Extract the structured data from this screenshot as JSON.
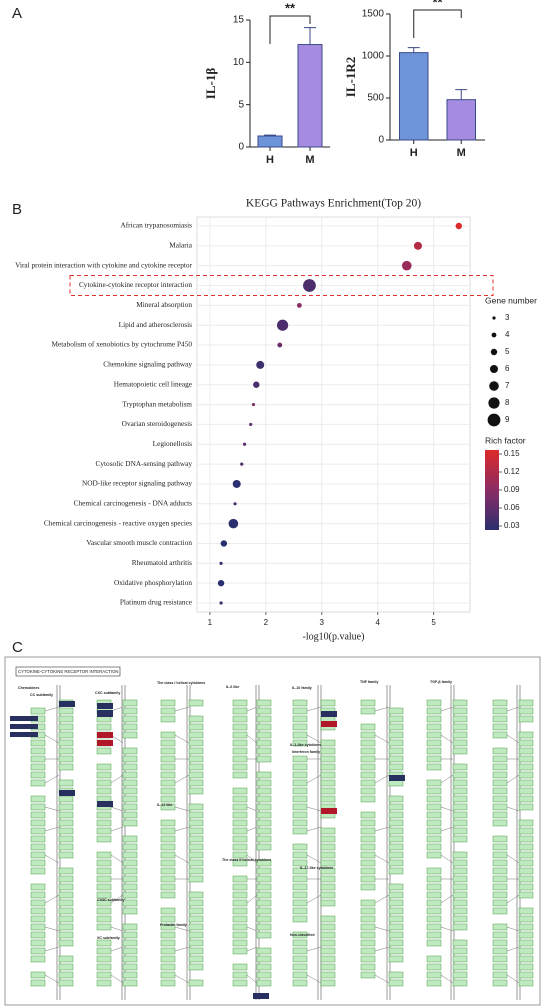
{
  "panel_labels": [
    "A",
    "B",
    "C"
  ],
  "chart_data": [
    {
      "type": "bar",
      "ylabel": "IL-1β",
      "categories": [
        "H",
        "M"
      ],
      "values": [
        1.3,
        12.1
      ],
      "errors": [
        0.1,
        2.0
      ],
      "colors": [
        "#6d93d8",
        "#a58ce0"
      ],
      "ylim": [
        0,
        15
      ],
      "yticks": [
        0,
        5,
        10,
        15
      ],
      "annotation": "**"
    },
    {
      "type": "bar",
      "ylabel": "IL-1R2",
      "categories": [
        "H",
        "M"
      ],
      "values": [
        1040,
        480
      ],
      "errors": [
        60,
        120
      ],
      "colors": [
        "#6d93d8",
        "#a58ce0"
      ],
      "ylim": [
        0,
        1500
      ],
      "yticks": [
        0,
        500,
        1000,
        1500
      ],
      "annotation": "**"
    },
    {
      "type": "dot",
      "title": "KEGG Pathways Enrichment(Top 20)",
      "xlabel": "-log10(p.value)",
      "categories": [
        "African trypanosomiasis",
        "Malaria",
        "Viral protein interaction with cytokine and cytokine receptor",
        "Cytokine-cytokine receptor interaction",
        "Mineral absorption",
        "Lipid and atherosclerosis",
        "Metabolism of xenobiotics by cytochrome P450",
        "Chemokine signaling pathway",
        "Hematopoietic cell lineage",
        "Tryptophan metabolism",
        "Ovarian steroidogenesis",
        "Legionellosis",
        "Cytosolic DNA-sensing pathway",
        "NOD-like receptor signaling pathway",
        "Chemical carcinogenesis - DNA adducts",
        "Chemical carcinogenesis - reactive oxygen species",
        "Vascular smooth muscle contraction",
        "Rheumatoid arthritis",
        "Oxidative phosphorylation",
        "Platinum drug resistance"
      ],
      "values": [
        5.45,
        4.72,
        4.52,
        2.78,
        2.6,
        2.3,
        2.25,
        1.9,
        1.83,
        1.78,
        1.73,
        1.62,
        1.57,
        1.48,
        1.45,
        1.42,
        1.25,
        1.2,
        1.2,
        1.2
      ],
      "gene_number": [
        5,
        6,
        7,
        9,
        4,
        8,
        4,
        6,
        5,
        3,
        3,
        3,
        3,
        6,
        3,
        7,
        5,
        3,
        5,
        3
      ],
      "rich_factor": [
        0.15,
        0.12,
        0.1,
        0.05,
        0.09,
        0.05,
        0.07,
        0.04,
        0.05,
        0.08,
        0.06,
        0.06,
        0.05,
        0.03,
        0.05,
        0.03,
        0.03,
        0.04,
        0.03,
        0.04
      ],
      "xlim": [
        0.77,
        5.65
      ],
      "xticks": [
        1,
        2,
        3,
        4,
        5
      ],
      "grid": true,
      "size_legend_title": "Gene number",
      "size_legend_ticks": [
        3,
        4,
        5,
        6,
        7,
        8,
        9
      ],
      "color_legend_title": "Rich factor",
      "colorbar_ticks": [
        0.03,
        0.06,
        0.09,
        0.12,
        0.15
      ],
      "colormap": [
        "#2b2f6f",
        "#8b2c64",
        "#dc2a2a"
      ]
    }
  ],
  "kegg_map": {
    "title": "CYTOKINE-CYTOKINE RECEPTOR INTERACTION",
    "groups": [
      "Chemokines",
      "CC subfamily",
      "CXC subfamily",
      "CX3C subfamily",
      "XC subfamily",
      "The class I helical cytokines",
      "IL-6 like",
      "IL-12 like",
      "Prolactin family",
      "The class II helical cytokines",
      "IL-10 family",
      "Interferon family",
      "IL-1-like cytokines",
      "IL-17-like cytokines",
      "Non-classified",
      "TNF family",
      "TGF-β family"
    ]
  }
}
